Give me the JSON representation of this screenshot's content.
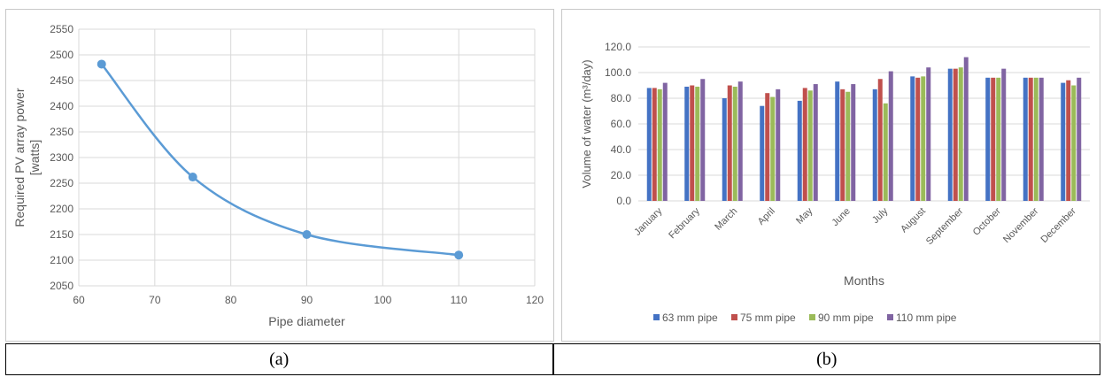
{
  "captions": {
    "a": "(a)",
    "b": "(b)"
  },
  "chart_data": [
    {
      "type": "line",
      "title": "",
      "xlabel": "Pipe diameter",
      "ylabel": "Required PV array power [watts]",
      "xlim": [
        60,
        120
      ],
      "ylim": [
        2050,
        2550
      ],
      "xticks": [
        60,
        70,
        80,
        90,
        100,
        110,
        120
      ],
      "yticks": [
        2050,
        2100,
        2150,
        2200,
        2250,
        2300,
        2350,
        2400,
        2450,
        2500,
        2550
      ],
      "grid": true,
      "color": "#5b9bd5",
      "x": [
        63,
        75,
        90,
        110
      ],
      "y": [
        2482,
        2262,
        2150,
        2110
      ]
    },
    {
      "type": "bar",
      "title": "",
      "xlabel": "Months",
      "ylabel": "Volume of water (m³/day)",
      "ylim": [
        0,
        120
      ],
      "yticks": [
        "0.0",
        "20.0",
        "40.0",
        "60.0",
        "80.0",
        "100.0",
        "120.0"
      ],
      "grid": true,
      "legend": "bottom",
      "categories": [
        "January",
        "February",
        "March",
        "April",
        "May",
        "June",
        "July",
        "August",
        "September",
        "October",
        "November",
        "December"
      ],
      "series": [
        {
          "name": "63 mm pipe",
          "color": "#4472c4",
          "values": [
            88,
            89,
            80,
            74,
            78,
            93,
            87,
            97,
            103,
            96,
            96,
            92
          ]
        },
        {
          "name": "75 mm pipe",
          "color": "#c0504d",
          "values": [
            88,
            90,
            90,
            84,
            88,
            87,
            95,
            96,
            103,
            96,
            96,
            94
          ]
        },
        {
          "name": "90 mm pipe",
          "color": "#9bbb59",
          "values": [
            87,
            89,
            89,
            81,
            86,
            85,
            76,
            97,
            104,
            96,
            96,
            90
          ]
        },
        {
          "name": "110 mm pipe",
          "color": "#8064a2",
          "values": [
            92,
            95,
            93,
            87,
            91,
            91,
            101,
            104,
            112,
            103,
            96,
            96
          ]
        }
      ]
    }
  ]
}
